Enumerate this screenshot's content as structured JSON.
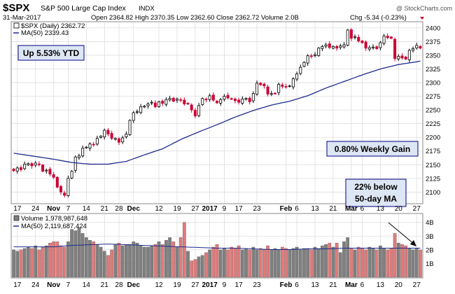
{
  "header": {
    "symbol": "$SPX",
    "name": "S&P 500 Large Cap Index",
    "exchange": "INDX",
    "copyright": "@ StockCharts.com",
    "date": "31-Mar-2017",
    "quote_line": "Open 2364.82 High 2370.35 Low 2362.60 Close 2362.72 Volume 2.0B",
    "change": "Chg -5.34 (-0.23%)"
  },
  "legend": {
    "price_label": "$SPX (Daily) 2362.72",
    "ma_label": "MA(50) 2339.43",
    "volume_label": "Volume 1,978,987,648",
    "volume_ma_label": "MA(50) 2,119,687,424"
  },
  "annotations": {
    "ytd": "Up 5.53% YTD",
    "weekly": "0.80% Weekly Gain",
    "below_ma_line1": "22% below",
    "below_ma_line2": "50-day MA"
  },
  "colors": {
    "up": "#000000",
    "down": "#cc0033",
    "ma": "#1f2a8c",
    "volume_up": "#7f7f7f",
    "volume_down": "#e07a7a",
    "grid": "#d9d9d9",
    "box_fill": "#dde6f3",
    "box_border": "#000080"
  },
  "chart_data": {
    "type": "candlestick",
    "price_axis": {
      "ticks": [
        2100,
        2125,
        2150,
        2175,
        2200,
        2225,
        2250,
        2275,
        2300,
        2325,
        2350,
        2375,
        2400
      ],
      "range": [
        2080,
        2410
      ]
    },
    "volume_axis": {
      "ticks": [
        "1B",
        "2B",
        "3B",
        "4B"
      ],
      "range": [
        0,
        4.6
      ]
    },
    "x_labels": [
      {
        "label": "17",
        "bold": false,
        "i": 1
      },
      {
        "label": "24",
        "bold": false,
        "i": 6
      },
      {
        "label": "Nov",
        "bold": true,
        "i": 11
      },
      {
        "label": "7",
        "bold": false,
        "i": 15
      },
      {
        "label": "14",
        "bold": false,
        "i": 20
      },
      {
        "label": "21",
        "bold": false,
        "i": 25
      },
      {
        "label": "28",
        "bold": false,
        "i": 29
      },
      {
        "label": "Dec",
        "bold": true,
        "i": 33
      },
      {
        "label": "12",
        "bold": false,
        "i": 40
      },
      {
        "label": "19",
        "bold": false,
        "i": 45
      },
      {
        "label": "27",
        "bold": false,
        "i": 50
      },
      {
        "label": "2017",
        "bold": true,
        "i": 54
      },
      {
        "label": "9",
        "bold": false,
        "i": 58
      },
      {
        "label": "17",
        "bold": false,
        "i": 62
      },
      {
        "label": "23",
        "bold": false,
        "i": 67
      },
      {
        "label": "Feb",
        "bold": true,
        "i": 75
      },
      {
        "label": "6",
        "bold": false,
        "i": 78
      },
      {
        "label": "13",
        "bold": false,
        "i": 83
      },
      {
        "label": "21",
        "bold": false,
        "i": 88
      },
      {
        "label": "Mar",
        "bold": true,
        "i": 93
      },
      {
        "label": "6",
        "bold": false,
        "i": 96
      },
      {
        "label": "13",
        "bold": false,
        "i": 101
      },
      {
        "label": "20",
        "bold": false,
        "i": 106
      },
      {
        "label": "27",
        "bold": false,
        "i": 111
      }
    ],
    "closes": [
      2139,
      2144,
      2141,
      2151,
      2152,
      2148,
      2153,
      2150,
      2138,
      2140,
      2133,
      2127,
      2109,
      2100,
      2094,
      2125,
      2138,
      2164,
      2166,
      2180,
      2182,
      2188,
      2187,
      2198,
      2202,
      2213,
      2206,
      2198,
      2198,
      2191,
      2199,
      2206,
      2231,
      2245,
      2247,
      2256,
      2257,
      2261,
      2264,
      2256,
      2265,
      2262,
      2269,
      2271,
      2266,
      2270,
      2268,
      2261,
      2261,
      2250,
      2239,
      2258,
      2271,
      2269,
      2276,
      2268,
      2263,
      2269,
      2275,
      2272,
      2270,
      2267,
      2264,
      2270,
      2271,
      2265,
      2280,
      2299,
      2296,
      2294,
      2279,
      2280,
      2280,
      2297,
      2293,
      2292,
      2294,
      2307,
      2316,
      2328,
      2337,
      2349,
      2348,
      2351,
      2363,
      2366,
      2369,
      2364,
      2366,
      2363,
      2367,
      2369,
      2396,
      2381,
      2384,
      2376,
      2373,
      2363,
      2364,
      2365,
      2362,
      2373,
      2385,
      2382,
      2381,
      2344,
      2348,
      2345,
      2343,
      2359,
      2362,
      2368,
      2363
    ],
    "volumes": [
      2.0,
      1.9,
      2.0,
      2.1,
      2.2,
      2.1,
      2.3,
      2.0,
      2.2,
      2.3,
      2.5,
      2.6,
      2.6,
      2.3,
      2.2,
      2.6,
      3.5,
      3.4,
      3.6,
      3.2,
      2.9,
      2.7,
      2.6,
      2.4,
      2.2,
      1.9,
      1.6,
      2.0,
      2.4,
      2.5,
      2.3,
      2.4,
      2.4,
      2.6,
      2.5,
      2.3,
      2.2,
      2.2,
      2.3,
      2.4,
      2.6,
      2.4,
      2.7,
      2.9,
      2.6,
      2.2,
      2.9,
      4.0,
      1.9,
      1.2,
      1.3,
      1.5,
      1.6,
      1.8,
      2.0,
      2.2,
      2.4,
      2.0,
      2.1,
      2.0,
      2.2,
      2.1,
      2.3,
      2.0,
      2.1,
      2.0,
      2.2,
      2.0,
      2.1,
      2.0,
      2.3,
      2.0,
      2.1,
      2.0,
      2.2,
      2.1,
      2.0,
      2.1,
      2.2,
      2.0,
      2.1,
      2.1,
      2.0,
      2.2,
      2.1,
      2.3,
      2.4,
      2.5,
      2.2,
      2.5,
      1.8,
      2.6,
      2.9,
      2.1,
      2.0,
      2.2,
      2.1,
      2.0,
      2.2,
      2.1,
      2.0,
      2.3,
      2.1,
      2.0,
      2.1,
      3.2,
      2.5,
      2.4,
      2.3,
      2.1,
      2.0,
      2.1,
      2.0
    ],
    "ma50": [
      2171.0,
      2170.0,
      2169.0,
      2168.0,
      2167.0,
      2166.0,
      2165.0,
      2164.0,
      2163.0,
      2162.0,
      2161.0,
      2160.0,
      2158.8,
      2157.6,
      2156.4,
      2155.2,
      2154.0,
      2153.4,
      2152.8,
      2152.2,
      2151.6,
      2151.0,
      2151.0,
      2151.0,
      2151.0,
      2151.0,
      2151.0,
      2152.0,
      2153.0,
      2154.0,
      2155.0,
      2156.0,
      2158.4,
      2160.8,
      2163.2,
      2165.6,
      2168.0,
      2170.2,
      2172.4,
      2174.6,
      2176.8,
      2179.0,
      2182.4,
      2185.8,
      2189.2,
      2192.6,
      2196.0,
      2198.8,
      2201.6,
      2204.4,
      2207.2,
      2210.0,
      2212.6,
      2215.2,
      2217.8,
      2220.4,
      2223.0,
      2225.8,
      2228.6,
      2231.4,
      2234.2,
      2237.0,
      2239.4,
      2241.8,
      2244.2,
      2246.6,
      2249.0,
      2251.0,
      2253.0,
      2255.0,
      2257.0,
      2259.0,
      2260.4,
      2261.8,
      2263.2,
      2264.6,
      2266.0,
      2268.0,
      2270.0,
      2272.0,
      2274.0,
      2276.0,
      2278.8,
      2281.6,
      2284.4,
      2287.2,
      2290.0,
      2292.4,
      2294.8,
      2297.2,
      2299.6,
      2302.0,
      2304.4,
      2306.8,
      2309.2,
      2311.6,
      2314.0,
      2316.2,
      2318.4,
      2320.6,
      2322.8,
      2325.0,
      2326.6,
      2328.2,
      2329.8,
      2331.4,
      2333.0,
      2334.0,
      2335.0,
      2336.0,
      2337.0,
      2338.0,
      2339.4
    ],
    "volume_ma50": [
      2.22,
      2.22,
      2.22,
      2.22,
      2.22,
      2.22,
      2.22,
      2.22,
      2.22,
      2.22,
      2.22,
      2.22,
      2.24,
      2.26,
      2.28,
      2.3,
      2.32,
      2.33,
      2.34,
      2.35,
      2.36,
      2.37,
      2.38,
      2.39,
      2.4,
      2.41,
      2.42,
      2.41,
      2.4,
      2.39,
      2.38,
      2.37,
      2.36,
      2.35,
      2.34,
      2.33,
      2.32,
      2.31,
      2.3,
      2.29,
      2.28,
      2.27,
      2.26,
      2.25,
      2.24,
      2.23,
      2.22,
      2.21,
      2.2,
      2.19,
      2.18,
      2.17,
      2.16,
      2.15,
      2.14,
      2.13,
      2.12,
      2.12,
      2.12,
      2.12,
      2.12,
      2.12,
      2.11,
      2.1,
      2.09,
      2.08,
      2.07,
      2.06,
      2.05,
      2.04,
      2.03,
      2.02,
      2.02,
      2.02,
      2.02,
      2.02,
      2.02,
      2.03,
      2.04,
      2.05,
      2.06,
      2.07,
      2.07,
      2.07,
      2.07,
      2.07,
      2.07,
      2.08,
      2.09,
      2.1,
      2.11,
      2.12,
      2.12,
      2.12,
      2.12,
      2.12,
      2.12,
      2.12,
      2.12,
      2.12,
      2.12,
      2.12,
      2.12,
      2.12,
      2.12,
      2.12,
      2.12,
      2.12,
      2.12,
      2.12,
      2.12,
      2.12,
      2.12
    ]
  }
}
